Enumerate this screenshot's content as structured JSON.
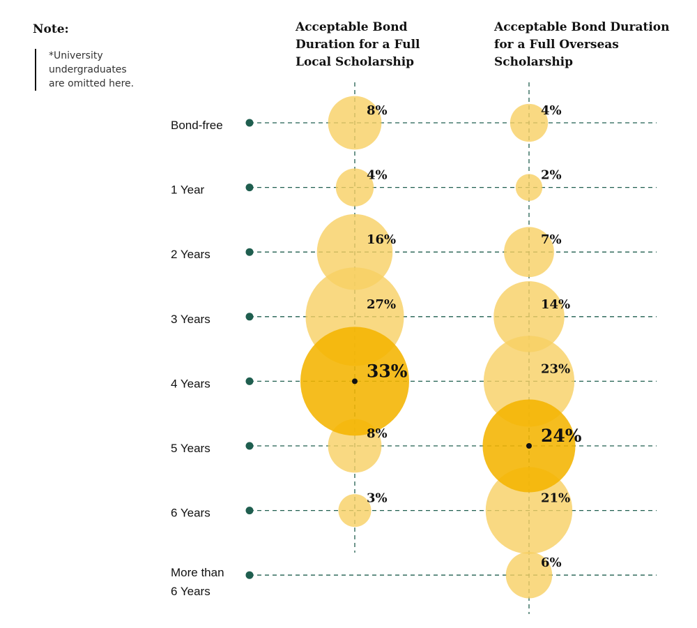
{
  "note": {
    "title": "Note:",
    "lines": [
      "*University",
      "undergraduates",
      "are omitted here."
    ]
  },
  "columns": [
    {
      "title_lines": [
        "Acceptable Bond",
        "Duration for a Full",
        "Local Scholarship"
      ]
    },
    {
      "title_lines": [
        "Acceptable Bond Duration",
        "for a Full Overseas",
        "Scholarship"
      ]
    }
  ],
  "colors": {
    "bubble_light": "#f8cf63",
    "bubble_highlight": "#f4b400",
    "line": "#1f5e4f",
    "dot": "#1f5e4f",
    "text": "#111111"
  },
  "chart_data": {
    "type": "bubble",
    "categories": [
      "Bond-free",
      "1 Year",
      "2 Years",
      "3 Years",
      "4 Years",
      "5 Years",
      "6 Years",
      "More than 6 Years"
    ],
    "category_label_lines": [
      [
        "Bond-free"
      ],
      [
        "1 Year"
      ],
      [
        "2 Years"
      ],
      [
        "3 Years"
      ],
      [
        "4 Years"
      ],
      [
        "5 Years"
      ],
      [
        "6 Years"
      ],
      [
        "More than",
        "6 Years"
      ]
    ],
    "series": [
      {
        "values": [
          8,
          4,
          16,
          27,
          33,
          8,
          3,
          null
        ],
        "labels": [
          "8%",
          "4%",
          "16%",
          "27%",
          "33%",
          "8%",
          "3%",
          ""
        ],
        "highlight_index": 4
      },
      {
        "values": [
          4,
          2,
          7,
          14,
          23,
          24,
          21,
          6
        ],
        "labels": [
          "4%",
          "2%",
          "7%",
          "14%",
          "23%",
          "24%",
          "21%",
          "6%"
        ],
        "highlight_index": 5
      }
    ],
    "unit": "%"
  }
}
